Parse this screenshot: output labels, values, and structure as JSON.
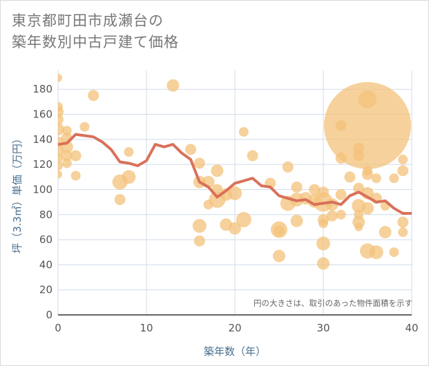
{
  "title_line1": "東京都町田市成瀬台の",
  "title_line2": "築年数別中古戸建て価格",
  "chart_data": {
    "type": "scatter",
    "xlabel": "築年数（年）",
    "ylabel": "坪（3.3㎡）単価（万円）",
    "note": "円の大きさは、取引のあった物件面積を示す",
    "xlim": [
      0,
      40
    ],
    "ylim": [
      0,
      195
    ],
    "xticks": [
      "0",
      "10",
      "20",
      "30",
      "40"
    ],
    "yticks": [
      "0",
      "20",
      "40",
      "60",
      "80",
      "100",
      "120",
      "140",
      "160",
      "180"
    ],
    "grid": true,
    "colors": {
      "bubble": "#f3c27a",
      "line": "#d9715a",
      "grid": "#d0dbe8"
    },
    "bubbles": [
      {
        "x": 0,
        "y": 189,
        "s": 6
      },
      {
        "x": 0,
        "y": 166,
        "s": 7
      },
      {
        "x": 0,
        "y": 162,
        "s": 8
      },
      {
        "x": 0,
        "y": 156,
        "s": 8
      },
      {
        "x": 0,
        "y": 148,
        "s": 9
      },
      {
        "x": 0,
        "y": 138,
        "s": 8
      },
      {
        "x": 0,
        "y": 131,
        "s": 8
      },
      {
        "x": 0,
        "y": 125,
        "s": 7
      },
      {
        "x": 0,
        "y": 119,
        "s": 7
      },
      {
        "x": 0,
        "y": 112,
        "s": 6
      },
      {
        "x": 1,
        "y": 147,
        "s": 7
      },
      {
        "x": 1,
        "y": 141,
        "s": 8
      },
      {
        "x": 1,
        "y": 134,
        "s": 9
      },
      {
        "x": 1,
        "y": 127,
        "s": 8
      },
      {
        "x": 1,
        "y": 121,
        "s": 7
      },
      {
        "x": 2,
        "y": 127,
        "s": 8
      },
      {
        "x": 2,
        "y": 111,
        "s": 7
      },
      {
        "x": 3,
        "y": 150,
        "s": 7
      },
      {
        "x": 4,
        "y": 175,
        "s": 8
      },
      {
        "x": 7,
        "y": 106,
        "s": 11
      },
      {
        "x": 7,
        "y": 92,
        "s": 8
      },
      {
        "x": 8,
        "y": 130,
        "s": 7
      },
      {
        "x": 8,
        "y": 110,
        "s": 10
      },
      {
        "x": 13,
        "y": 183,
        "s": 9
      },
      {
        "x": 15,
        "y": 132,
        "s": 8
      },
      {
        "x": 16,
        "y": 121,
        "s": 8
      },
      {
        "x": 16,
        "y": 106,
        "s": 9
      },
      {
        "x": 16,
        "y": 71,
        "s": 10
      },
      {
        "x": 16,
        "y": 59,
        "s": 8
      },
      {
        "x": 17,
        "y": 106,
        "s": 9
      },
      {
        "x": 17,
        "y": 88,
        "s": 7
      },
      {
        "x": 18,
        "y": 115,
        "s": 9
      },
      {
        "x": 18,
        "y": 100,
        "s": 8
      },
      {
        "x": 18,
        "y": 92,
        "s": 12
      },
      {
        "x": 19,
        "y": 96,
        "s": 9
      },
      {
        "x": 19,
        "y": 72,
        "s": 9
      },
      {
        "x": 20,
        "y": 97,
        "s": 10
      },
      {
        "x": 20,
        "y": 69,
        "s": 9
      },
      {
        "x": 21,
        "y": 146,
        "s": 7
      },
      {
        "x": 21,
        "y": 76,
        "s": 11
      },
      {
        "x": 22,
        "y": 127,
        "s": 8
      },
      {
        "x": 24,
        "y": 105,
        "s": 8
      },
      {
        "x": 25,
        "y": 68,
        "s": 12
      },
      {
        "x": 25,
        "y": 67,
        "s": 8
      },
      {
        "x": 25,
        "y": 47,
        "s": 9
      },
      {
        "x": 26,
        "y": 118,
        "s": 8
      },
      {
        "x": 26,
        "y": 89,
        "s": 11
      },
      {
        "x": 27,
        "y": 102,
        "s": 8
      },
      {
        "x": 27,
        "y": 92,
        "s": 10
      },
      {
        "x": 27,
        "y": 75,
        "s": 9
      },
      {
        "x": 28,
        "y": 93,
        "s": 9
      },
      {
        "x": 29,
        "y": 100,
        "s": 8
      },
      {
        "x": 29,
        "y": 91,
        "s": 10
      },
      {
        "x": 30,
        "y": 98,
        "s": 8
      },
      {
        "x": 30,
        "y": 90,
        "s": 14
      },
      {
        "x": 30,
        "y": 76,
        "s": 8
      },
      {
        "x": 30,
        "y": 73,
        "s": 7
      },
      {
        "x": 30,
        "y": 57,
        "s": 10
      },
      {
        "x": 30,
        "y": 41,
        "s": 9
      },
      {
        "x": 31,
        "y": 88,
        "s": 9
      },
      {
        "x": 31,
        "y": 79,
        "s": 8
      },
      {
        "x": 32,
        "y": 151,
        "s": 8
      },
      {
        "x": 32,
        "y": 125,
        "s": 8
      },
      {
        "x": 32,
        "y": 96,
        "s": 8
      },
      {
        "x": 32,
        "y": 80,
        "s": 7
      },
      {
        "x": 33,
        "y": 110,
        "s": 8
      },
      {
        "x": 34,
        "y": 133,
        "s": 8
      },
      {
        "x": 34,
        "y": 127,
        "s": 8
      },
      {
        "x": 34,
        "y": 101,
        "s": 8
      },
      {
        "x": 34,
        "y": 87,
        "s": 10
      },
      {
        "x": 34,
        "y": 80,
        "s": 7
      },
      {
        "x": 34,
        "y": 74,
        "s": 9
      },
      {
        "x": 34,
        "y": 70,
        "s": 6
      },
      {
        "x": 35,
        "y": 172,
        "s": 13
      },
      {
        "x": 35,
        "y": 151,
        "s": 63
      },
      {
        "x": 35,
        "y": 115,
        "s": 7
      },
      {
        "x": 35,
        "y": 112,
        "s": 8
      },
      {
        "x": 35,
        "y": 97,
        "s": 9
      },
      {
        "x": 35,
        "y": 85,
        "s": 9
      },
      {
        "x": 35,
        "y": 51,
        "s": 11
      },
      {
        "x": 36,
        "y": 109,
        "s": 7
      },
      {
        "x": 36,
        "y": 93,
        "s": 8
      },
      {
        "x": 36,
        "y": 50,
        "s": 10
      },
      {
        "x": 37,
        "y": 87,
        "s": 7
      },
      {
        "x": 37,
        "y": 66,
        "s": 9
      },
      {
        "x": 38,
        "y": 109,
        "s": 7
      },
      {
        "x": 38,
        "y": 50,
        "s": 7
      },
      {
        "x": 39,
        "y": 124,
        "s": 7
      },
      {
        "x": 39,
        "y": 115,
        "s": 8
      },
      {
        "x": 39,
        "y": 74,
        "s": 8
      },
      {
        "x": 39,
        "y": 66,
        "s": 7
      }
    ],
    "trend": {
      "x": [
        0,
        1,
        2,
        3,
        4,
        5,
        6,
        7,
        8,
        9,
        10,
        11,
        12,
        13,
        14,
        15,
        16,
        17,
        18,
        19,
        20,
        21,
        22,
        23,
        24,
        25,
        26,
        27,
        28,
        29,
        30,
        31,
        32,
        33,
        34,
        35,
        36,
        37,
        38,
        39,
        40
      ],
      "y": [
        136,
        137,
        144,
        143,
        142,
        138,
        132,
        122,
        121,
        119,
        123,
        136,
        134,
        136,
        129,
        124,
        106,
        102,
        94,
        99,
        105,
        107,
        109,
        103,
        102,
        95,
        93,
        91,
        92,
        88,
        89,
        90,
        88,
        95,
        98,
        94,
        90,
        91,
        85,
        81,
        81
      ]
    }
  }
}
